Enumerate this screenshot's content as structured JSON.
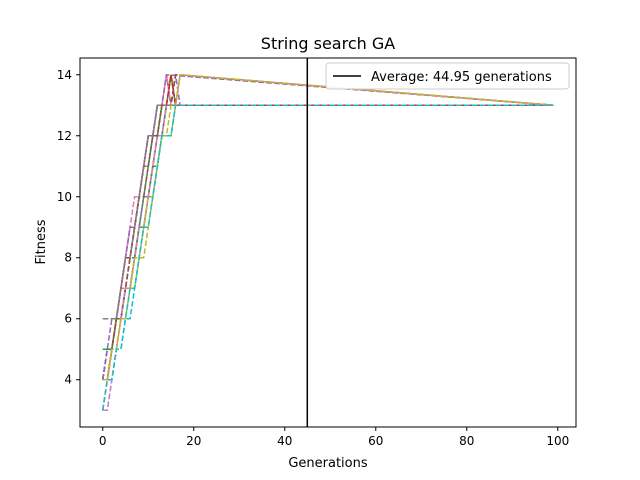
{
  "chart_data": {
    "type": "line",
    "title": "String search GA",
    "xlabel": "Generations",
    "ylabel": "Fitness",
    "xlim": [
      -5,
      104
    ],
    "ylim": [
      2.45,
      14.55
    ],
    "xticks": [
      0,
      20,
      40,
      60,
      80,
      100
    ],
    "yticks": [
      4,
      6,
      8,
      10,
      12,
      14
    ],
    "grid": false,
    "legend_position": "top-right",
    "average_line": {
      "label": "Average: 44.95 generations",
      "x": 44.95,
      "color": "#000000"
    },
    "series": [
      {
        "color": "#1f77b4",
        "x": [
          0,
          1,
          2,
          3,
          4,
          5,
          6,
          7,
          8,
          9,
          10,
          11,
          12,
          13,
          14,
          15,
          16,
          17,
          18,
          99
        ],
        "values": [
          4,
          5,
          5,
          6,
          6,
          7,
          8,
          8,
          9,
          10,
          10,
          11,
          12,
          12,
          13,
          13,
          13,
          13,
          13,
          13
        ]
      },
      {
        "color": "#ff7f0e",
        "x": [
          0,
          1,
          2,
          3,
          4,
          5,
          6,
          7,
          8,
          9,
          10,
          11,
          12,
          13,
          14,
          15,
          16,
          99
        ],
        "values": [
          3,
          4,
          5,
          6,
          7,
          8,
          8,
          9,
          10,
          11,
          11,
          12,
          12,
          13,
          13,
          14,
          13,
          13
        ]
      },
      {
        "color": "#2ca02c",
        "x": [
          0,
          1,
          2,
          3,
          4,
          5,
          6,
          7,
          8,
          9,
          10,
          11,
          12,
          13,
          14,
          15,
          16,
          99
        ],
        "values": [
          5,
          5,
          5,
          6,
          6,
          7,
          7,
          8,
          9,
          10,
          11,
          12,
          12,
          13,
          13,
          14,
          13,
          13
        ]
      },
      {
        "color": "#d62728",
        "x": [
          0,
          1,
          2,
          3,
          4,
          5,
          6,
          7,
          8,
          9,
          10,
          11,
          12,
          13,
          14,
          15,
          16,
          99
        ],
        "values": [
          4,
          4,
          5,
          6,
          7,
          8,
          8,
          9,
          10,
          11,
          12,
          12,
          12,
          13,
          13,
          14,
          13,
          13
        ]
      },
      {
        "color": "#9467bd",
        "x": [
          0,
          1,
          2,
          3,
          4,
          5,
          6,
          7,
          8,
          9,
          10,
          11,
          12,
          13,
          14,
          15,
          16,
          17,
          99
        ],
        "values": [
          4,
          4,
          5,
          5,
          6,
          7,
          7,
          8,
          9,
          10,
          10,
          11,
          12,
          12,
          13,
          13,
          14,
          13,
          13
        ]
      },
      {
        "color": "#8c564b",
        "x": [
          0,
          1,
          2,
          3,
          4,
          5,
          6,
          7,
          8,
          9,
          10,
          11,
          12,
          13,
          14,
          15,
          99
        ],
        "values": [
          4,
          5,
          5,
          6,
          7,
          8,
          9,
          9,
          10,
          11,
          12,
          12,
          13,
          13,
          14,
          13,
          13
        ]
      },
      {
        "color": "#e377c2",
        "x": [
          0,
          1,
          2,
          3,
          4,
          5,
          6,
          7,
          8,
          9,
          10,
          11,
          12,
          13,
          14,
          15,
          99
        ],
        "values": [
          3,
          4,
          5,
          6,
          7,
          8,
          9,
          10,
          10,
          11,
          12,
          12,
          13,
          13,
          14,
          13,
          13
        ]
      },
      {
        "color": "#7f7f7f",
        "x": [
          0,
          1,
          2,
          3,
          4,
          5,
          6,
          7,
          8,
          9,
          10,
          11,
          12,
          13,
          14,
          15,
          16,
          99
        ],
        "values": [
          4,
          4,
          5,
          5,
          6,
          7,
          7,
          8,
          9,
          9,
          10,
          11,
          12,
          12,
          13,
          13,
          14,
          13
        ]
      },
      {
        "color": "#bcbd22",
        "x": [
          0,
          1,
          2,
          3,
          4,
          5,
          6,
          7,
          8,
          9,
          10,
          11,
          12,
          13,
          14,
          15,
          16,
          17,
          99
        ],
        "values": [
          4,
          4,
          5,
          5,
          6,
          6,
          7,
          7,
          8,
          8,
          9,
          10,
          11,
          12,
          12,
          12,
          13,
          13,
          13
        ]
      },
      {
        "color": "#17becf",
        "x": [
          0,
          1,
          2,
          3,
          4,
          5,
          6,
          7,
          8,
          9,
          10,
          11,
          12,
          13,
          14,
          15,
          16,
          17,
          99
        ],
        "values": [
          3,
          3,
          4,
          5,
          5,
          6,
          6,
          7,
          8,
          9,
          10,
          10,
          11,
          12,
          12,
          12,
          13,
          13,
          13
        ]
      },
      {
        "color": "#1f77b4",
        "x": [
          0,
          1,
          2,
          3,
          4,
          5,
          6,
          7,
          8,
          9,
          10,
          11,
          12,
          13,
          14,
          15,
          16,
          99
        ],
        "values": [
          4,
          5,
          5,
          6,
          6,
          7,
          8,
          9,
          10,
          11,
          11,
          12,
          12,
          13,
          13,
          13,
          14,
          13
        ]
      },
      {
        "color": "#ff7f0e",
        "x": [
          0,
          1,
          2,
          3,
          4,
          5,
          6,
          7,
          8,
          9,
          10,
          11,
          12,
          13,
          14,
          15,
          99
        ],
        "values": [
          4,
          4,
          5,
          6,
          7,
          7,
          8,
          9,
          10,
          11,
          12,
          12,
          13,
          13,
          13,
          13,
          13
        ]
      },
      {
        "color": "#2ca02c",
        "x": [
          0,
          1,
          2,
          3,
          4,
          5,
          6,
          7,
          8,
          9,
          10,
          11,
          12,
          13,
          14,
          15,
          16,
          17,
          99
        ],
        "values": [
          5,
          5,
          5,
          6,
          6,
          7,
          7,
          8,
          9,
          9,
          10,
          11,
          11,
          12,
          13,
          13,
          13,
          14,
          13
        ]
      },
      {
        "color": "#d62728",
        "x": [
          0,
          1,
          2,
          3,
          4,
          5,
          6,
          7,
          8,
          9,
          10,
          11,
          12,
          13,
          14,
          15,
          16,
          99
        ],
        "values": [
          4,
          4,
          5,
          6,
          7,
          8,
          8,
          9,
          10,
          11,
          12,
          12,
          13,
          13,
          13,
          14,
          13,
          13
        ]
      },
      {
        "color": "#9467bd",
        "x": [
          0,
          1,
          2,
          3,
          4,
          5,
          6,
          7,
          8,
          9,
          10,
          11,
          12,
          13,
          14,
          99
        ],
        "values": [
          4,
          5,
          6,
          6,
          7,
          8,
          9,
          9,
          10,
          11,
          12,
          12,
          13,
          13,
          14,
          13
        ]
      },
      {
        "color": "#8c564b",
        "x": [
          0,
          1,
          2,
          3,
          4,
          5,
          6,
          7,
          8,
          9,
          10,
          11,
          12,
          13,
          14,
          15,
          16,
          99
        ],
        "values": [
          4,
          4,
          5,
          6,
          6,
          7,
          8,
          9,
          10,
          10,
          11,
          12,
          12,
          13,
          13,
          13,
          14,
          13
        ]
      },
      {
        "color": "#e377c2",
        "x": [
          0,
          1,
          2,
          3,
          4,
          5,
          6,
          7,
          8,
          9,
          10,
          11,
          12,
          13,
          14,
          15,
          16,
          17,
          99
        ],
        "values": [
          3,
          3,
          4,
          5,
          6,
          7,
          7,
          8,
          9,
          9,
          10,
          11,
          12,
          12,
          13,
          13,
          13,
          14,
          13
        ]
      },
      {
        "color": "#7f7f7f",
        "x": [
          0,
          1,
          2,
          3,
          4,
          5,
          6,
          7,
          8,
          9,
          10,
          11,
          12,
          13,
          14,
          15,
          99
        ],
        "values": [
          6,
          6,
          6,
          6,
          7,
          8,
          8,
          9,
          10,
          11,
          12,
          12,
          13,
          13,
          13,
          13,
          13
        ]
      },
      {
        "color": "#bcbd22",
        "x": [
          0,
          1,
          2,
          3,
          4,
          5,
          6,
          7,
          8,
          9,
          10,
          11,
          12,
          13,
          14,
          15,
          16,
          17,
          99
        ],
        "values": [
          4,
          4,
          5,
          5,
          6,
          6,
          7,
          8,
          8,
          9,
          10,
          10,
          11,
          12,
          12,
          13,
          13,
          14,
          13
        ]
      },
      {
        "color": "#17becf",
        "x": [
          0,
          1,
          2,
          3,
          4,
          5,
          6,
          7,
          8,
          9,
          10,
          11,
          12,
          13,
          14,
          15,
          16,
          17,
          99
        ],
        "values": [
          3,
          4,
          4,
          5,
          5,
          6,
          7,
          7,
          8,
          9,
          9,
          10,
          11,
          12,
          12,
          12,
          13,
          13,
          13
        ]
      }
    ]
  }
}
